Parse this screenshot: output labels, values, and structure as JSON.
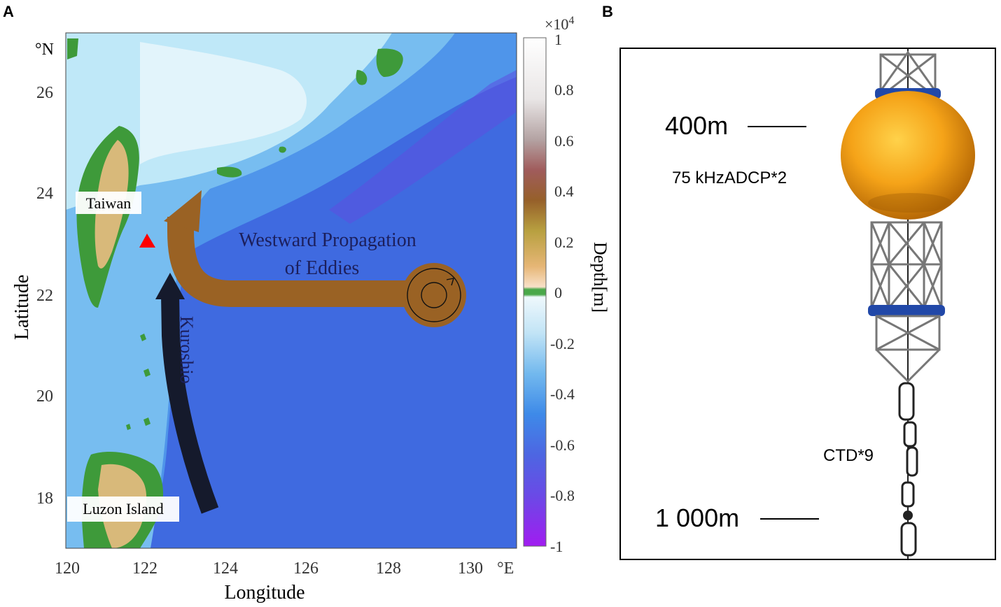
{
  "panel_a": {
    "label": "A",
    "units_label": "°N",
    "lat_axis_label": "Latitude",
    "lon_axis_label": "Longitude",
    "lat_ticks": [
      "26",
      "24",
      "22",
      "20",
      "18"
    ],
    "lon_ticks": [
      "120",
      "122",
      "124",
      "126",
      "128",
      "130"
    ],
    "lon_units": "°E",
    "places": {
      "taiwan": "Taiwan",
      "luzon": "Luzon Island"
    },
    "annotations": {
      "eddies_line1": "Westward Propagation",
      "eddies_line2": "of Eddies",
      "kuroshio": "Kuroshio"
    },
    "colorbar": {
      "exponent_base": "×10",
      "exponent_power": "4",
      "ticks": [
        "1",
        "0.8",
        "0.6",
        "0.4",
        "0.2",
        "0",
        "-0.2",
        "-0.4",
        "-0.6",
        "-0.8",
        "-1"
      ],
      "label": "Depth[m]"
    },
    "colors": {
      "deep_ocean": "#3f6ae0",
      "mid_ocean": "#4f95ea",
      "shelf": "#bfe8f8",
      "land_low": "#3e9a3a",
      "land_high": "#d8b97a",
      "eddy_arrow": "#9a6224",
      "kuroshio_arrow": "#151a2c",
      "station": "#ff0000"
    }
  },
  "panel_b": {
    "label": "B",
    "depth_top": "400m",
    "depth_bottom": "1 000m",
    "instrument_adcp": "75 kHzADCP*2",
    "instrument_ctd": "CTD*9"
  }
}
